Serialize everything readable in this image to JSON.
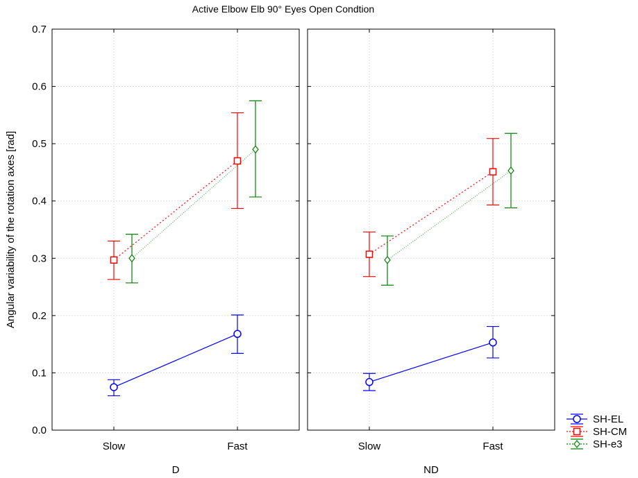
{
  "chart_data": {
    "type": "line",
    "title": "Active Elbow Elb 90° Eyes Open Condtion",
    "ylabel": "Angular variability of the rotation axes [rad]",
    "ylim": [
      0,
      0.7
    ],
    "yticks": [
      "0.0",
      "0.1",
      "0.2",
      "0.3",
      "0.4",
      "0.5",
      "0.6",
      "0.7"
    ],
    "categories": [
      "Slow",
      "Fast"
    ],
    "grid": true,
    "legend_position": "bottom-right",
    "panels": [
      {
        "name": "D",
        "series": [
          {
            "name": "SH-EL",
            "color": "#0000ff",
            "marker": "circle",
            "line": "solid",
            "values": [
              0.075,
              0.168
            ],
            "lower": [
              0.06,
              0.134
            ],
            "upper": [
              0.088,
              0.201
            ]
          },
          {
            "name": "SH-CM",
            "color": "#ff0000",
            "marker": "square",
            "line": "dotted",
            "values": [
              0.297,
              0.47
            ],
            "lower": [
              0.263,
              0.387
            ],
            "upper": [
              0.33,
              0.554
            ]
          },
          {
            "name": "SH-e3",
            "color": "#008000",
            "marker": "diamond",
            "line": "dotted",
            "values": [
              0.3,
              0.49
            ],
            "lower": [
              0.257,
              0.407
            ],
            "upper": [
              0.342,
              0.575
            ]
          }
        ]
      },
      {
        "name": "ND",
        "series": [
          {
            "name": "SH-EL",
            "color": "#0000ff",
            "marker": "circle",
            "line": "solid",
            "values": [
              0.084,
              0.153
            ],
            "lower": [
              0.069,
              0.126
            ],
            "upper": [
              0.099,
              0.181
            ]
          },
          {
            "name": "SH-CM",
            "color": "#ff0000",
            "marker": "square",
            "line": "dotted",
            "values": [
              0.307,
              0.451
            ],
            "lower": [
              0.268,
              0.393
            ],
            "upper": [
              0.346,
              0.509
            ]
          },
          {
            "name": "SH-e3",
            "color": "#008000",
            "marker": "diamond",
            "line": "dotted",
            "values": [
              0.297,
              0.453
            ],
            "lower": [
              0.253,
              0.388
            ],
            "upper": [
              0.339,
              0.518
            ]
          }
        ]
      }
    ],
    "legend": [
      {
        "name": "SH-EL",
        "color": "#0000ff",
        "marker": "circle",
        "line": "solid"
      },
      {
        "name": "SH-CM",
        "color": "#ff0000",
        "marker": "square",
        "line": "dotted"
      },
      {
        "name": "SH-e3",
        "color": "#008000",
        "marker": "diamond",
        "line": "dotted"
      }
    ]
  }
}
